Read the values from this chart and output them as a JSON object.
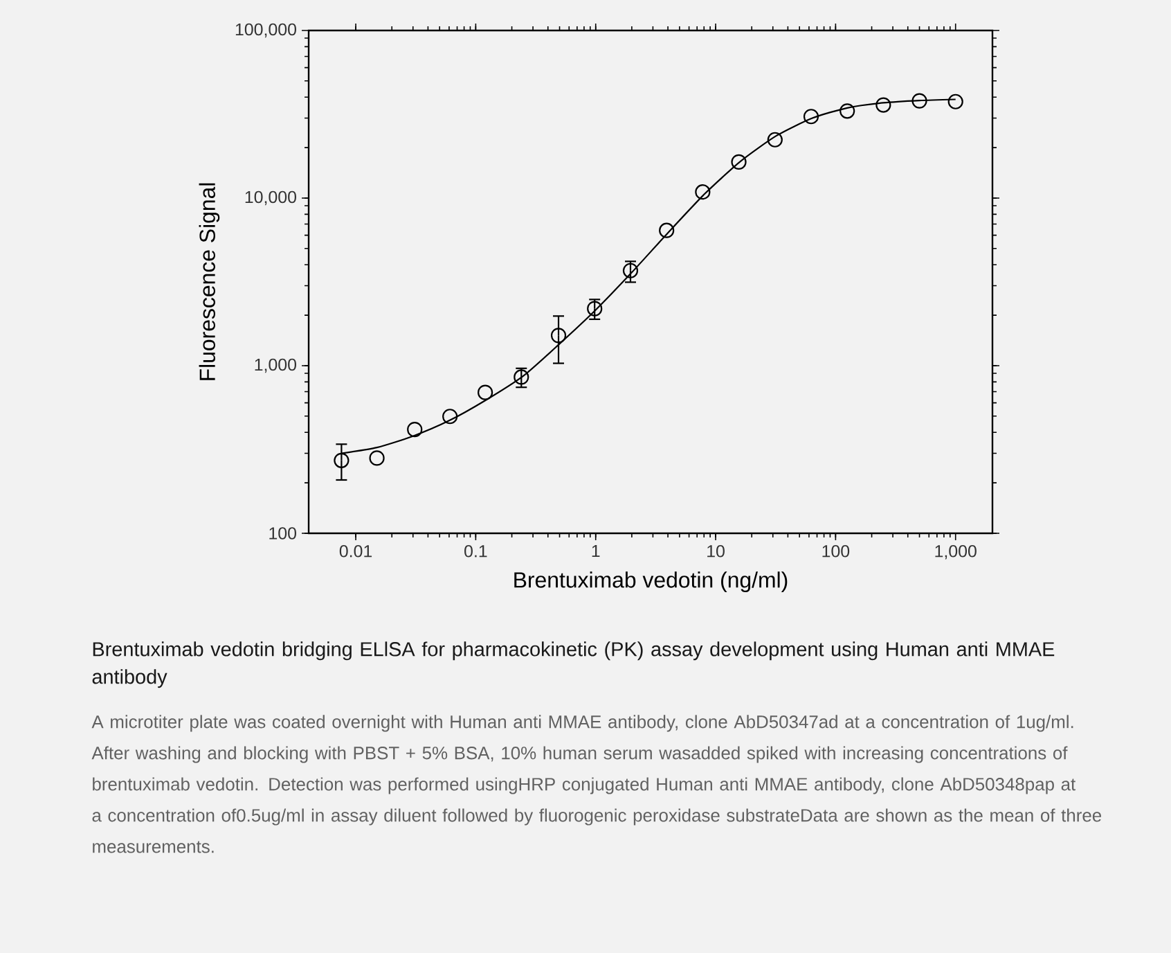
{
  "chart_data": {
    "type": "scatter",
    "title": "Brentuximab vedotin bridging ELlSA for pharmacokinetic (PK) assay development using Human anti MMAE antibody",
    "xlabel": "Brentuximab vedotin (ng/ml)",
    "ylabel": "Fluorescence Signal",
    "annotations": [
      "A microtiter plate was coated overnight with Human anti MMAE antibody, clone AbD50347ad at a concentration of 1ug/ml. After washing and blocking with PBST + 5% BSA, 10% human serum wasadded spiked with increasing concentrations of brentuximab vedotin. Detection was performed usingHRP conjugated Human anti MMAE antibody, clone AbD50348pap at a concentration of0.5ug/ml in assay diluent followed by fluorogenic peroxidase substrateData are shown as the mean of three measurements."
    ],
    "x": [
      0.0076,
      0.015,
      0.031,
      0.061,
      0.12,
      0.24,
      0.49,
      0.98,
      1.95,
      3.9,
      7.8,
      15.6,
      31.25,
      62.5,
      125,
      250,
      500,
      1000
    ],
    "series": [
      {
        "type": "line",
        "color": "#000000",
        "marker": "none",
        "line_style": "solid",
        "x": [
          0.0076,
          0.015,
          0.03,
          0.06,
          0.12,
          0.25,
          0.5,
          1,
          2,
          4,
          8,
          16,
          32,
          64,
          125,
          250,
          500,
          1000
        ],
        "values": [
          300,
          325,
          380,
          470,
          620,
          870,
          1350,
          2150,
          3600,
          6200,
          10500,
          16500,
          23500,
          30000,
          34500,
          37000,
          38200,
          38800
        ]
      },
      {
        "color": "#000000",
        "marker": "circle",
        "values": [
          272,
          281,
          416,
          498,
          692,
          855,
          1514,
          2188,
          3690,
          6410,
          10870,
          16410,
          22280,
          30650,
          33050,
          35920,
          38020,
          37600
        ],
        "errors": [
          [
            208,
            340
          ],
          null,
          null,
          null,
          null,
          [
            743,
            964
          ],
          [
            1033,
            1977
          ],
          [
            1892,
            2483
          ],
          [
            3148,
            4190
          ],
          null,
          null,
          null,
          null,
          null,
          null,
          null,
          null,
          null
        ]
      }
    ],
    "log": "xy",
    "xlim": [
      0.00405,
      2030
    ],
    "ylim": [
      100,
      100000
    ],
    "xticks": [
      0.01,
      0.1,
      1,
      10,
      100,
      {
        "value": 1000,
        "label": "1,000"
      }
    ],
    "yticks": [
      100,
      {
        "value": 1000,
        "label": "1,000"
      },
      {
        "value": 10000,
        "label": "10,000"
      },
      {
        "value": 100000,
        "label": "100,000"
      }
    ],
    "grid": false,
    "legend": false
  }
}
